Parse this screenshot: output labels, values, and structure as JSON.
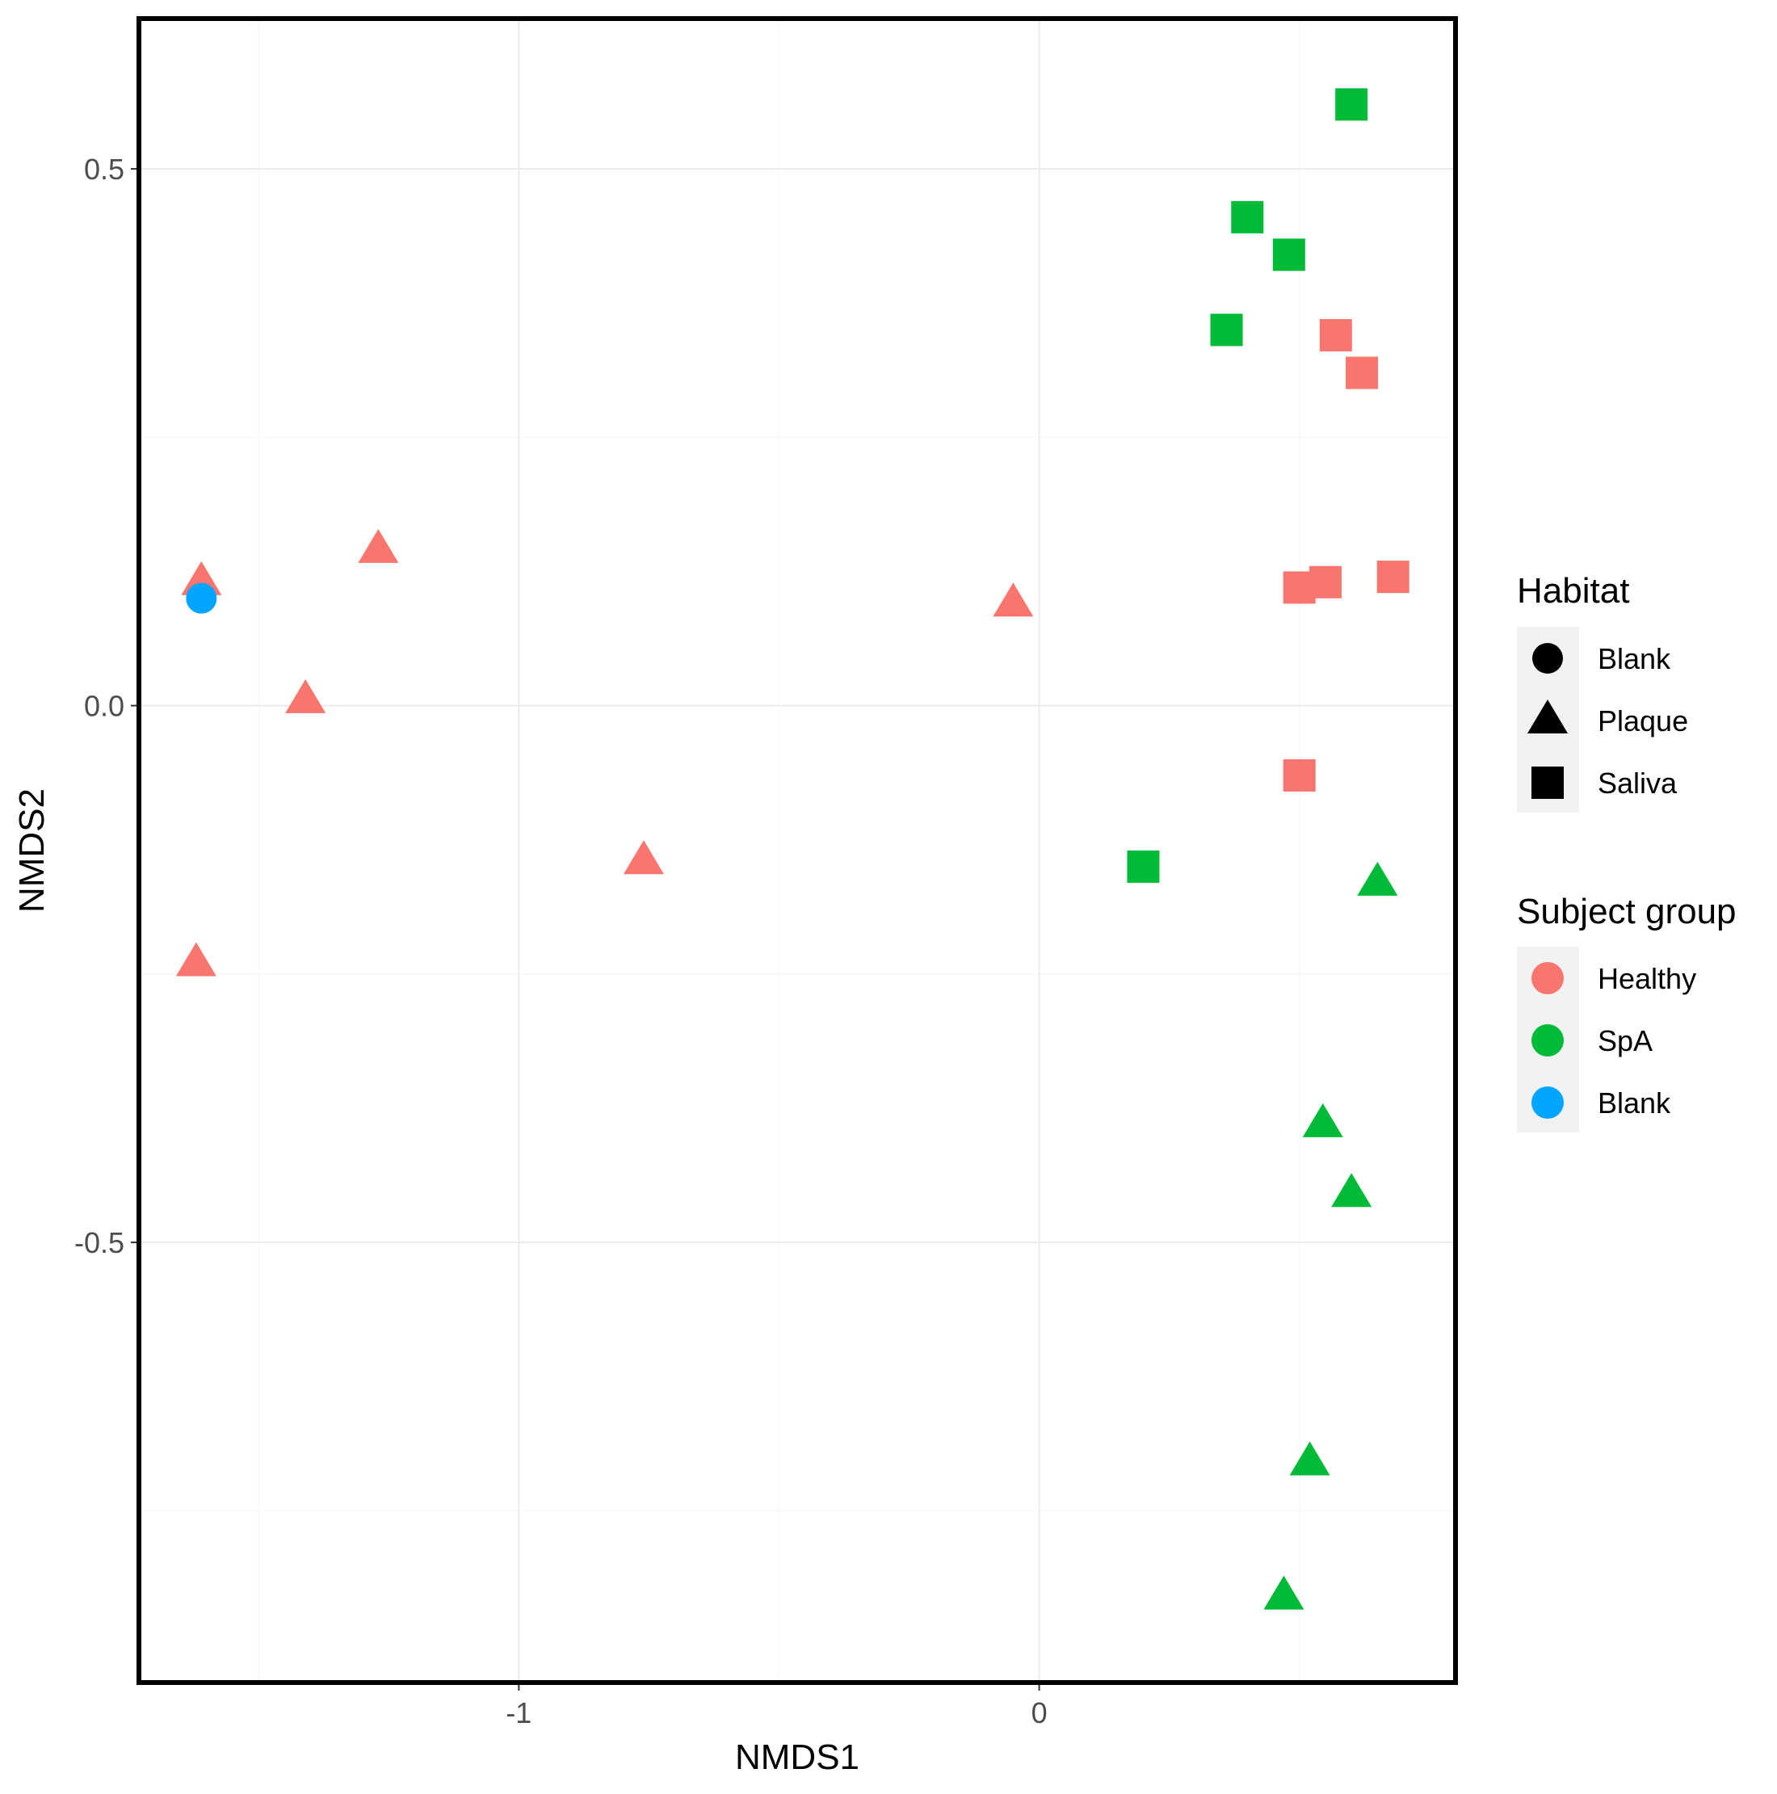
{
  "chart_data": {
    "type": "scatter",
    "title": "",
    "xlabel": "NMDS1",
    "ylabel": "NMDS2",
    "xlim": [
      -1.73,
      0.8
    ],
    "ylim": [
      -0.91,
      0.64
    ],
    "xticks": [
      -1,
      0
    ],
    "xtick_labels": [
      "-1",
      "0"
    ],
    "yticks": [
      -0.5,
      0.0,
      0.5
    ],
    "ytick_labels": [
      "-0.5",
      "0.0",
      "0.5"
    ],
    "grid": true,
    "colors": {
      "Healthy": "#f8766d",
      "SpA": "#00ba38",
      "Blank": "#00a5ff"
    },
    "points": [
      {
        "x": 0.6,
        "y": 0.56,
        "habitat": "Saliva",
        "group": "SpA"
      },
      {
        "x": 0.4,
        "y": 0.455,
        "habitat": "Saliva",
        "group": "SpA"
      },
      {
        "x": 0.48,
        "y": 0.42,
        "habitat": "Saliva",
        "group": "SpA"
      },
      {
        "x": 0.36,
        "y": 0.35,
        "habitat": "Saliva",
        "group": "SpA"
      },
      {
        "x": 0.2,
        "y": -0.15,
        "habitat": "Saliva",
        "group": "SpA"
      },
      {
        "x": 0.57,
        "y": 0.345,
        "habitat": "Saliva",
        "group": "Healthy"
      },
      {
        "x": 0.62,
        "y": 0.31,
        "habitat": "Saliva",
        "group": "Healthy"
      },
      {
        "x": 0.5,
        "y": 0.11,
        "habitat": "Saliva",
        "group": "Healthy"
      },
      {
        "x": 0.55,
        "y": 0.115,
        "habitat": "Saliva",
        "group": "Healthy"
      },
      {
        "x": 0.68,
        "y": 0.12,
        "habitat": "Saliva",
        "group": "Healthy"
      },
      {
        "x": 0.5,
        "y": -0.065,
        "habitat": "Saliva",
        "group": "Healthy"
      },
      {
        "x": -1.61,
        "y": 0.115,
        "habitat": "Plaque",
        "group": "Healthy"
      },
      {
        "x": -1.27,
        "y": 0.145,
        "habitat": "Plaque",
        "group": "Healthy"
      },
      {
        "x": -1.41,
        "y": 0.005,
        "habitat": "Plaque",
        "group": "Healthy"
      },
      {
        "x": -0.05,
        "y": 0.095,
        "habitat": "Plaque",
        "group": "Healthy"
      },
      {
        "x": -0.76,
        "y": -0.145,
        "habitat": "Plaque",
        "group": "Healthy"
      },
      {
        "x": -1.62,
        "y": -0.24,
        "habitat": "Plaque",
        "group": "Healthy"
      },
      {
        "x": 0.65,
        "y": -0.165,
        "habitat": "Plaque",
        "group": "SpA"
      },
      {
        "x": 0.545,
        "y": -0.39,
        "habitat": "Plaque",
        "group": "SpA"
      },
      {
        "x": 0.6,
        "y": -0.455,
        "habitat": "Plaque",
        "group": "SpA"
      },
      {
        "x": 0.52,
        "y": -0.705,
        "habitat": "Plaque",
        "group": "SpA"
      },
      {
        "x": 0.47,
        "y": -0.83,
        "habitat": "Plaque",
        "group": "SpA"
      },
      {
        "x": -1.61,
        "y": 0.1,
        "habitat": "Blank",
        "group": "Blank"
      }
    ],
    "legend": {
      "placement": "right",
      "habitat": {
        "title": "Habitat",
        "entries": [
          {
            "label": "Blank",
            "shape": "circle"
          },
          {
            "label": "Plaque",
            "shape": "triangle"
          },
          {
            "label": "Saliva",
            "shape": "square"
          }
        ]
      },
      "group": {
        "title": "Subject group",
        "entries": [
          {
            "label": "Healthy",
            "color": "#f8766d"
          },
          {
            "label": "SpA",
            "color": "#00ba38"
          },
          {
            "label": "Blank",
            "color": "#00a5ff"
          }
        ]
      }
    }
  }
}
